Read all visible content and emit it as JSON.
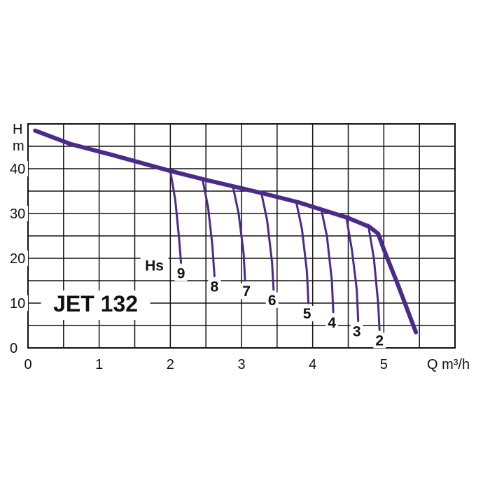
{
  "chart_data": {
    "type": "line",
    "title": "JET 132",
    "xlabel": "Q m³/h",
    "ylabel": "H m",
    "xlim": [
      0,
      6
    ],
    "ylim": [
      0,
      50
    ],
    "xticks": [
      "0",
      "1",
      "2",
      "3",
      "4",
      "5"
    ],
    "yticks": [
      "0",
      "10",
      "20",
      "30",
      "40"
    ],
    "grid": true,
    "colors": {
      "curve": "#4b2a8c",
      "text": "#111111",
      "grid": "#111111"
    },
    "main_curve": {
      "x": [
        0.1,
        0.6,
        1.2,
        2.0,
        2.5,
        2.9,
        3.3,
        3.8,
        4.1,
        4.5,
        4.8,
        4.92,
        5.0,
        5.05,
        5.2,
        5.45
      ],
      "y": [
        48.5,
        45.5,
        43.0,
        39.5,
        37.5,
        36.0,
        34.5,
        32.5,
        31.0,
        29.0,
        27.0,
        25.5,
        22.0,
        20.0,
        14.0,
        3.5
      ]
    },
    "hs_label": "Hs",
    "hs_series": [
      {
        "name": "9",
        "x": [
          2.0,
          2.07,
          2.12,
          2.15
        ],
        "y": [
          39.5,
          33.0,
          25.0,
          19.0
        ]
      },
      {
        "name": "8",
        "x": [
          2.45,
          2.53,
          2.59,
          2.62
        ],
        "y": [
          37.8,
          31.5,
          23.0,
          16.0
        ]
      },
      {
        "name": "7",
        "x": [
          2.88,
          2.96,
          3.03,
          3.05
        ],
        "y": [
          36.0,
          30.0,
          21.0,
          15.0
        ]
      },
      {
        "name": "6",
        "x": [
          3.28,
          3.36,
          3.43,
          3.45
        ],
        "y": [
          34.5,
          28.5,
          19.0,
          13.0
        ]
      },
      {
        "name": "5",
        "x": [
          3.77,
          3.85,
          3.92,
          3.94
        ],
        "y": [
          32.5,
          26.5,
          17.0,
          10.0
        ]
      },
      {
        "name": "4",
        "x": [
          4.12,
          4.2,
          4.27,
          4.29
        ],
        "y": [
          31.0,
          25.0,
          15.0,
          8.0
        ]
      },
      {
        "name": "3",
        "x": [
          4.47,
          4.55,
          4.62,
          4.64
        ],
        "y": [
          29.5,
          22.0,
          13.0,
          6.0
        ]
      },
      {
        "name": "2",
        "x": [
          4.78,
          4.86,
          4.92,
          4.94
        ],
        "y": [
          27.5,
          20.0,
          10.0,
          4.0
        ]
      }
    ]
  }
}
